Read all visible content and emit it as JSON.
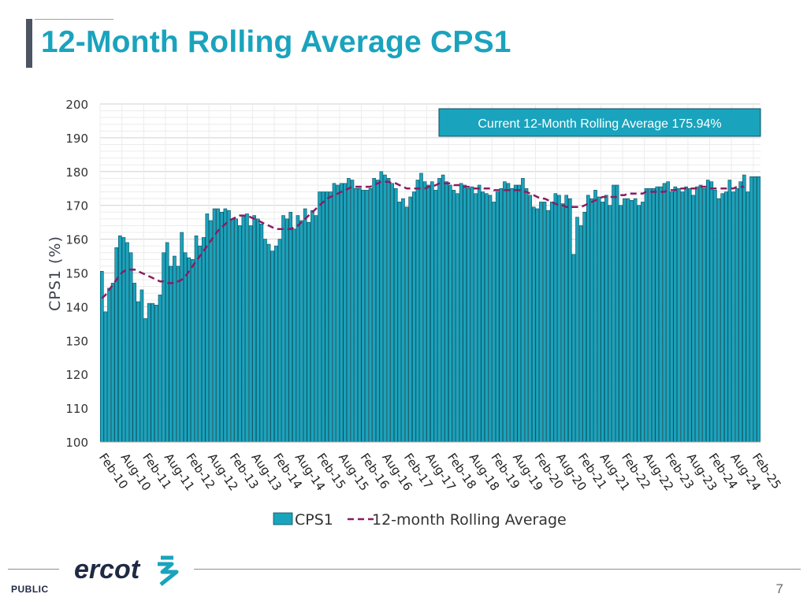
{
  "header": {
    "title": "12-Month Rolling Average CPS1"
  },
  "footer": {
    "label": "PUBLIC",
    "page": "7",
    "logo_text": "ercot"
  },
  "colors": {
    "bar": "#1aa3bd",
    "bar_edge": "#0b4f5d",
    "rolling": "#8b1c62",
    "title": "#1aa3bd"
  },
  "chart_data": {
    "type": "bar",
    "ylabel": "CPS1 (%)",
    "ylim": [
      100,
      200
    ],
    "yticks": [
      100,
      110,
      120,
      130,
      140,
      150,
      160,
      170,
      180,
      190,
      200
    ],
    "grid": true,
    "legend_position": "bottom",
    "annotation": "Current 12-Month Rolling Average 175.94%",
    "x_tick_labels": [
      "Feb-10",
      "Aug-10",
      "Feb-11",
      "Aug-11",
      "Feb-12",
      "Aug-12",
      "Feb-13",
      "Aug-13",
      "Feb-14",
      "Aug-14",
      "Feb-15",
      "Aug-15",
      "Feb-16",
      "Aug-16",
      "Feb-17",
      "Aug-17",
      "Feb-18",
      "Aug-18",
      "Feb-19",
      "Aug-19",
      "Feb-20",
      "Aug-20",
      "Feb-21",
      "Aug-21",
      "Feb-22",
      "Aug-22",
      "Feb-23",
      "Aug-23",
      "Feb-24",
      "Aug-24",
      "Feb-25"
    ],
    "series": [
      {
        "name": "CPS1",
        "values": [
          150.5,
          138.5,
          145.5,
          147,
          157.5,
          161,
          160.5,
          159,
          156,
          147,
          141.5,
          145,
          136.5,
          141,
          141,
          140.5,
          143.5,
          156,
          159,
          152,
          155,
          152,
          162,
          156,
          154.5,
          154,
          161,
          158,
          160.5,
          167.5,
          165.5,
          169,
          169,
          168,
          169,
          168.5,
          166,
          166,
          164,
          167,
          167.5,
          164,
          167,
          166,
          164.5,
          160,
          158.5,
          156.5,
          158,
          160,
          167,
          166,
          168,
          163,
          167,
          165.5,
          169,
          165,
          168.5,
          167,
          174,
          174,
          174,
          174,
          176.5,
          176,
          176.5,
          176.5,
          178,
          177.5,
          175,
          175,
          174.5,
          174.5,
          175,
          178,
          177.5,
          180,
          179,
          178,
          176.5,
          175,
          171,
          172,
          169.5,
          172.5,
          174,
          177.5,
          179.5,
          177,
          176,
          177,
          174.5,
          178,
          179,
          177,
          176,
          174.5,
          173.5,
          176.5,
          176,
          175,
          175.5,
          173.5,
          176,
          174,
          173.5,
          173,
          171,
          174,
          175,
          177,
          176.5,
          175,
          176,
          176,
          178,
          175,
          173,
          169.5,
          169,
          171,
          171,
          168.5,
          171,
          173.5,
          173,
          170.5,
          173,
          172,
          155.5,
          166.5,
          164,
          168,
          173,
          172,
          174.5,
          172.5,
          171,
          173,
          170,
          176,
          176,
          170,
          172,
          172,
          171.5,
          172,
          170,
          171,
          175,
          175,
          175,
          175.5,
          175.5,
          176.5,
          177,
          174,
          175.5,
          175,
          174,
          175.5,
          175,
          173,
          175.5,
          176,
          175,
          177.5,
          177,
          174.5,
          172,
          173.5,
          174,
          177.5,
          174,
          175,
          177,
          179,
          174,
          178.5,
          178.5,
          178.5
        ]
      },
      {
        "name": "12-month Rolling Average",
        "values": [
          142.5,
          143.5,
          145,
          146.5,
          148,
          149.5,
          150.5,
          151,
          151,
          151,
          150.5,
          150,
          149.5,
          149,
          148.5,
          148,
          147.5,
          147.5,
          147,
          147,
          147,
          147.5,
          148,
          149,
          150.5,
          152,
          153.5,
          155,
          156.5,
          158,
          159.5,
          161,
          162.5,
          163.5,
          164.5,
          165.5,
          166,
          166.5,
          167,
          167,
          167,
          166.5,
          166,
          165.5,
          165,
          164.5,
          164,
          163.5,
          163,
          163,
          163,
          163,
          163,
          163.5,
          164,
          165,
          166,
          167,
          168,
          169,
          170,
          171,
          172,
          172.5,
          173,
          173.5,
          174,
          174.5,
          175,
          175.5,
          175.5,
          175.5,
          175.5,
          175.5,
          175.5,
          176,
          176.5,
          177,
          177,
          177,
          176.5,
          176.5,
          176,
          175.5,
          175,
          175,
          175,
          175,
          175,
          175,
          175.5,
          175.5,
          176,
          176.5,
          176.5,
          176.5,
          176.5,
          176,
          176,
          176,
          175.5,
          175.5,
          175,
          175,
          175,
          175,
          175,
          175,
          174.5,
          174.5,
          174.5,
          174.5,
          174.5,
          174.5,
          174.5,
          174.5,
          174,
          174,
          173.5,
          173,
          172.5,
          172,
          172,
          171.5,
          171,
          170.5,
          170,
          170,
          169.5,
          169.5,
          169.5,
          169.5,
          169.5,
          170,
          170.5,
          171,
          171.5,
          172,
          172.5,
          172.5,
          172.5,
          172.5,
          172.5,
          173,
          173,
          173.5,
          173.5,
          173.5,
          173.5,
          173.5,
          174,
          174,
          174,
          174,
          174,
          174,
          174.5,
          174.5,
          174.5,
          175,
          175,
          175,
          175,
          175,
          175,
          175.5,
          175.5,
          175.5,
          175,
          175,
          175,
          175,
          175,
          175,
          175,
          175.5,
          175.5,
          175.5
        ]
      }
    ]
  }
}
